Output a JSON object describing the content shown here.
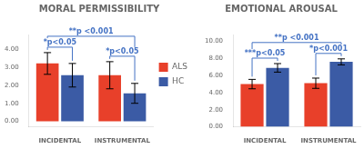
{
  "chart_data": [
    {
      "type": "bar",
      "title": "MORAL PERMISSIBILITY",
      "categories": [
        "INCIDENTAL",
        "INSTRUMENTAL"
      ],
      "series": [
        {
          "name": "ALS",
          "color": "#E8402A",
          "values": [
            3.2,
            2.55
          ],
          "errors": [
            0.6,
            0.75
          ]
        },
        {
          "name": "HC",
          "color": "#3B5BA5",
          "values": [
            2.55,
            1.55
          ],
          "errors": [
            0.65,
            0.55
          ]
        }
      ],
      "ylim": [
        -0.3,
        4.8
      ],
      "yticks": [
        {
          "value": 0,
          "label": "0.00"
        },
        {
          "value": 1,
          "label": "1.00"
        },
        {
          "value": 2,
          "label": "2.00"
        },
        {
          "value": 3,
          "label": "3.00"
        },
        {
          "value": 4,
          "label": "4.00"
        }
      ],
      "grid": false,
      "legend": "right",
      "annotations": [
        {
          "text": "*p<0.05",
          "from": {
            "category": "INCIDENTAL",
            "series": "ALS"
          },
          "to": {
            "category": "INCIDENTAL",
            "series": "HC"
          },
          "color": "#4472C4"
        },
        {
          "text": "**p <0.001",
          "from": {
            "category": "INCIDENTAL",
            "series": "ALS"
          },
          "to": {
            "category": "INSTRUMENTAL",
            "series": "HC"
          },
          "color": "#4472C4"
        },
        {
          "text": "*p<0.05",
          "from": {
            "category": "INSTRUMENTAL",
            "series": "ALS"
          },
          "to": {
            "category": "INSTRUMENTAL",
            "series": "HC"
          },
          "color": "#4472C4"
        }
      ]
    },
    {
      "type": "bar",
      "title": "EMOTIONAL AROUSAL",
      "categories": [
        "INCIDENTAL",
        "INSTRUMENTAL"
      ],
      "series": [
        {
          "name": "ALS",
          "color": "#E8402A",
          "values": [
            5.0,
            5.1
          ],
          "errors": [
            0.55,
            0.6
          ]
        },
        {
          "name": "HC",
          "color": "#3B5BA5",
          "values": [
            6.9,
            7.6
          ],
          "errors": [
            0.5,
            0.35
          ]
        }
      ],
      "ylim": [
        0.0,
        10.8
      ],
      "yticks": [
        {
          "value": 0,
          "label": "0.00"
        },
        {
          "value": 2,
          "label": "2.00"
        },
        {
          "value": 4,
          "label": "4.00"
        },
        {
          "value": 6,
          "label": "6.00"
        },
        {
          "value": 8,
          "label": "8.00"
        },
        {
          "value": 10,
          "label": "10.00"
        }
      ],
      "grid": false,
      "annotations": [
        {
          "text": "***p<0.05",
          "from": {
            "category": "INCIDENTAL",
            "series": "ALS"
          },
          "to": {
            "category": "INCIDENTAL",
            "series": "HC"
          },
          "color": "#4472C4"
        },
        {
          "text": "**p <0.001",
          "from": {
            "category": "INCIDENTAL",
            "series": "ALS"
          },
          "to": {
            "category": "INSTRUMENTAL",
            "series": "HC"
          },
          "color": "#4472C4"
        },
        {
          "text": "*p<0.001",
          "from": {
            "category": "INSTRUMENTAL",
            "series": "ALS"
          },
          "to": {
            "category": "INSTRUMENTAL",
            "series": "HC"
          },
          "color": "#4472C4"
        }
      ]
    }
  ]
}
